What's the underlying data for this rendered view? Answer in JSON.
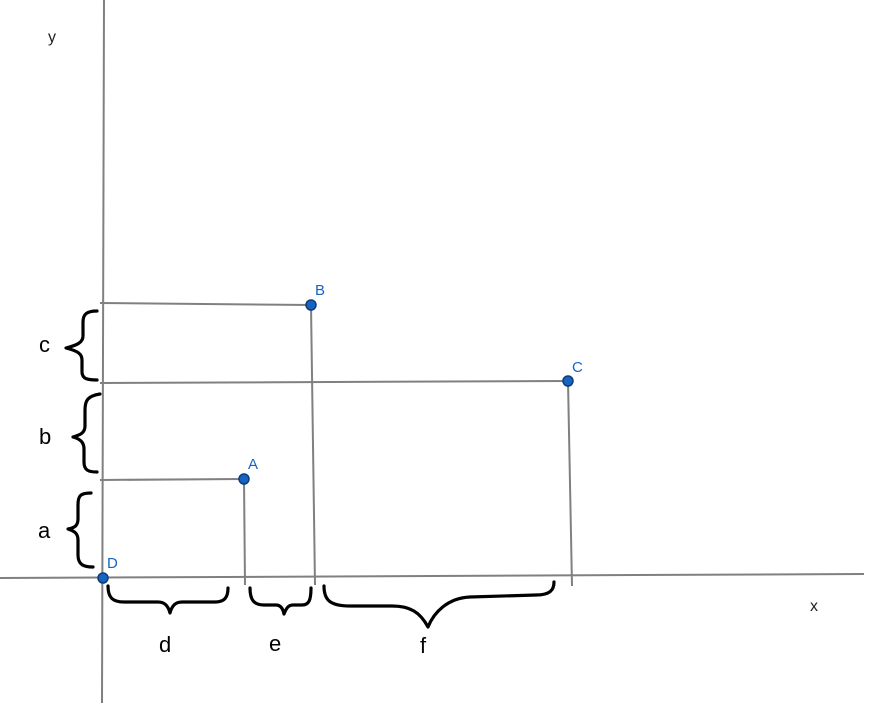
{
  "axes": {
    "x_label": "x",
    "y_label": "y"
  },
  "points": [
    {
      "id": "A",
      "label": "A"
    },
    {
      "id": "B",
      "label": "B"
    },
    {
      "id": "C",
      "label": "C"
    },
    {
      "id": "D",
      "label": "D"
    }
  ],
  "braces": {
    "vertical": [
      {
        "id": "a",
        "label": "a"
      },
      {
        "id": "b",
        "label": "b"
      },
      {
        "id": "c",
        "label": "c"
      }
    ],
    "horizontal": [
      {
        "id": "d",
        "label": "d"
      },
      {
        "id": "e",
        "label": "e"
      },
      {
        "id": "f",
        "label": "f"
      }
    ]
  },
  "colors": {
    "point_fill": "#1565c0",
    "point_label": "#1565c0",
    "lines": "#808080",
    "braces": "#000000"
  }
}
